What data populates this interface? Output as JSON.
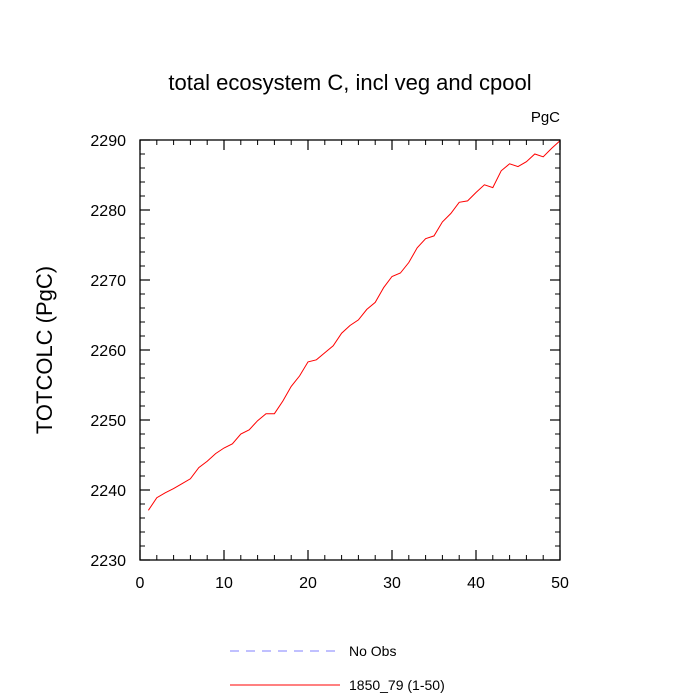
{
  "chart_data": {
    "type": "line",
    "title": "total ecosystem C, incl veg and cpool",
    "units_label": "PgC",
    "ylabel": "TOTCOLC  (PgC)",
    "xlabel": "",
    "xlim": [
      0,
      50
    ],
    "ylim": [
      2230,
      2290
    ],
    "xticks": [
      0,
      10,
      20,
      30,
      40,
      50
    ],
    "yticks": [
      2230,
      2240,
      2250,
      2260,
      2270,
      2280,
      2290
    ],
    "grid": false,
    "legend_position": "bottom",
    "legend": [
      {
        "label": "No Obs",
        "color": "#8080ff",
        "style": "dashed"
      },
      {
        "label": "1850_79 (1-50)",
        "color": "#ff0000",
        "style": "solid"
      }
    ],
    "series": [
      {
        "name": "1850_79 (1-50)",
        "color": "#ff0000",
        "x": [
          1,
          2,
          3,
          4,
          5,
          6,
          7,
          8,
          9,
          10,
          11,
          12,
          13,
          14,
          15,
          16,
          17,
          18,
          19,
          20,
          21,
          22,
          23,
          24,
          25,
          26,
          27,
          28,
          29,
          30,
          31,
          32,
          33,
          34,
          35,
          36,
          37,
          38,
          39,
          40,
          41,
          42,
          43,
          44,
          45,
          46,
          47,
          48,
          49,
          50
        ],
        "values": [
          2237.1,
          2238.9,
          2239.6,
          2240.2,
          2240.9,
          2241.6,
          2243.2,
          2244.1,
          2245.2,
          2246.0,
          2246.6,
          2248.0,
          2248.6,
          2249.9,
          2250.9,
          2250.9,
          2252.7,
          2254.8,
          2256.3,
          2258.3,
          2258.6,
          2259.6,
          2260.6,
          2262.4,
          2263.5,
          2264.3,
          2265.8,
          2266.8,
          2268.9,
          2270.5,
          2271.0,
          2272.5,
          2274.6,
          2275.9,
          2276.3,
          2278.3,
          2279.5,
          2281.1,
          2281.3,
          2282.5,
          2283.6,
          2283.2,
          2285.6,
          2286.6,
          2286.2,
          2286.9,
          2288.0,
          2287.6,
          2288.8,
          2289.9
        ]
      }
    ]
  }
}
